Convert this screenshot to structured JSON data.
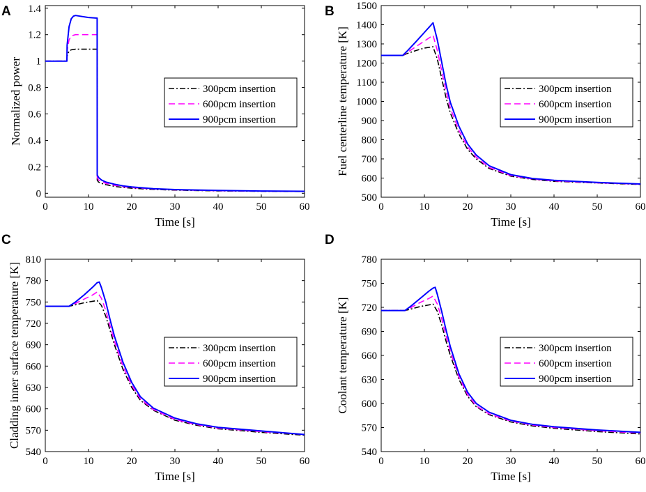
{
  "figure": {
    "description_free": true
  },
  "chart_data": [
    {
      "panel": "A",
      "type": "line",
      "xlabel": "Time [s]",
      "ylabel": "Normalized power",
      "xlim": [
        0,
        60
      ],
      "ylim": [
        -0.03,
        1.42
      ],
      "xticks": [
        0,
        10,
        20,
        30,
        40,
        50,
        60
      ],
      "yticks": [
        0,
        0.2,
        0.4,
        0.6,
        0.8,
        1,
        1.2,
        1.4
      ],
      "yticklabels": [
        "0",
        "0.2",
        "0.4",
        "0.6",
        "0.8",
        "1",
        "1.2",
        "1.4"
      ],
      "legend_position": "center-right",
      "series": [
        {
          "name": "300pcm insertion",
          "color": "#000000",
          "dash": "dashdot",
          "x": [
            0,
            5,
            5.05,
            5.5,
            6,
            7,
            8,
            10,
            12,
            12.02,
            12.3,
            13,
            14,
            16,
            18,
            20,
            25,
            30,
            40,
            50,
            60
          ],
          "y": [
            1.0,
            1.0,
            1.04,
            1.075,
            1.085,
            1.09,
            1.09,
            1.09,
            1.09,
            0.1,
            0.085,
            0.075,
            0.065,
            0.052,
            0.044,
            0.038,
            0.029,
            0.024,
            0.018,
            0.015,
            0.013
          ]
        },
        {
          "name": "600pcm insertion",
          "color": "#FF00FF",
          "dash": "dashed",
          "x": [
            0,
            5,
            5.05,
            5.5,
            6,
            7,
            8,
            10,
            12,
            12.02,
            12.3,
            13,
            14,
            16,
            18,
            20,
            25,
            30,
            40,
            50,
            60
          ],
          "y": [
            1.0,
            1.0,
            1.08,
            1.16,
            1.19,
            1.2,
            1.2,
            1.2,
            1.2,
            0.12,
            0.1,
            0.088,
            0.075,
            0.06,
            0.05,
            0.043,
            0.032,
            0.026,
            0.019,
            0.016,
            0.014
          ]
        },
        {
          "name": "900pcm insertion",
          "color": "#0000FF",
          "dash": "solid",
          "x": [
            0,
            5,
            5.05,
            5.5,
            6,
            6.5,
            7,
            8,
            10,
            12,
            12.02,
            12.3,
            13,
            14,
            16,
            18,
            20,
            25,
            30,
            40,
            50,
            60
          ],
          "y": [
            1.0,
            1.0,
            1.12,
            1.26,
            1.32,
            1.34,
            1.345,
            1.34,
            1.33,
            1.325,
            0.14,
            0.12,
            0.1,
            0.085,
            0.068,
            0.056,
            0.048,
            0.035,
            0.028,
            0.021,
            0.017,
            0.015
          ]
        }
      ]
    },
    {
      "panel": "B",
      "type": "line",
      "xlabel": "Time [s]",
      "ylabel": "Fuel centerline temperature [K]",
      "xlim": [
        0,
        60
      ],
      "ylim": [
        500,
        1500
      ],
      "xticks": [
        0,
        10,
        20,
        30,
        40,
        50,
        60
      ],
      "yticks": [
        500,
        600,
        700,
        800,
        900,
        1000,
        1100,
        1200,
        1300,
        1400,
        1500
      ],
      "yticklabels": [
        "500",
        "600",
        "700",
        "800",
        "900",
        "1000",
        "1100",
        "1200",
        "1300",
        "1400",
        "1500"
      ],
      "legend_position": "center-right",
      "series": [
        {
          "name": "300pcm insertion",
          "color": "#000000",
          "dash": "dashdot",
          "x": [
            0,
            5,
            6,
            8,
            10,
            12,
            13,
            14,
            15,
            16,
            18,
            20,
            22,
            25,
            30,
            35,
            40,
            50,
            60
          ],
          "y": [
            1240,
            1240,
            1250,
            1265,
            1278,
            1285,
            1220,
            1120,
            1020,
            940,
            830,
            750,
            700,
            650,
            610,
            593,
            583,
            574,
            567
          ]
        },
        {
          "name": "600pcm insertion",
          "color": "#FF00FF",
          "dash": "dashed",
          "x": [
            0,
            5,
            6,
            8,
            10,
            12,
            13,
            14,
            15,
            16,
            18,
            20,
            22,
            25,
            30,
            35,
            40,
            50,
            60
          ],
          "y": [
            1240,
            1240,
            1255,
            1285,
            1315,
            1345,
            1265,
            1160,
            1055,
            965,
            848,
            762,
            708,
            655,
            613,
            595,
            585,
            575,
            568
          ]
        },
        {
          "name": "900pcm insertion",
          "color": "#0000FF",
          "dash": "solid",
          "x": [
            0,
            5,
            6,
            8,
            10,
            12,
            13,
            14,
            15,
            16,
            18,
            20,
            22,
            25,
            30,
            35,
            40,
            50,
            60
          ],
          "y": [
            1240,
            1240,
            1262,
            1310,
            1360,
            1410,
            1320,
            1205,
            1090,
            995,
            870,
            778,
            720,
            664,
            618,
            598,
            588,
            577,
            569
          ]
        }
      ]
    },
    {
      "panel": "C",
      "type": "line",
      "xlabel": "Time [s]",
      "ylabel": "Cladding inner surface temperature [K]",
      "xlim": [
        0,
        60
      ],
      "ylim": [
        540,
        810
      ],
      "xticks": [
        0,
        10,
        20,
        30,
        40,
        50,
        60
      ],
      "yticks": [
        540,
        570,
        600,
        630,
        660,
        690,
        720,
        750,
        780,
        810
      ],
      "yticklabels": [
        "540",
        "570",
        "600",
        "630",
        "660",
        "690",
        "720",
        "750",
        "780",
        "810"
      ],
      "legend_position": "center-right",
      "series": [
        {
          "name": "300pcm insertion",
          "color": "#000000",
          "dash": "dashdot",
          "x": [
            0,
            5.5,
            7,
            9,
            11,
            12,
            13,
            14,
            15,
            16,
            18,
            20,
            22,
            25,
            30,
            35,
            40,
            50,
            60
          ],
          "y": [
            744,
            744,
            746,
            749,
            751,
            752,
            745,
            730,
            710,
            690,
            655,
            630,
            612,
            598,
            584,
            577,
            572,
            567,
            563
          ]
        },
        {
          "name": "600pcm insertion",
          "color": "#FF00FF",
          "dash": "dashed",
          "x": [
            0,
            5.5,
            7,
            9,
            11,
            12,
            13,
            14,
            15,
            16,
            18,
            20,
            22,
            25,
            30,
            35,
            40,
            50,
            60
          ],
          "y": [
            744,
            744,
            748,
            754,
            760,
            764,
            755,
            738,
            716,
            695,
            659,
            633,
            614,
            599,
            585,
            578,
            573,
            568,
            564
          ]
        },
        {
          "name": "900pcm insertion",
          "color": "#0000FF",
          "dash": "solid",
          "x": [
            0,
            5.5,
            7,
            9,
            11,
            12,
            12.5,
            13,
            14,
            15,
            16,
            18,
            20,
            22,
            25,
            30,
            35,
            40,
            50,
            60
          ],
          "y": [
            744,
            744,
            750,
            760,
            771,
            777,
            778,
            770,
            750,
            725,
            702,
            665,
            637,
            617,
            601,
            587,
            579,
            574,
            569,
            564
          ]
        }
      ]
    },
    {
      "panel": "D",
      "type": "line",
      "xlabel": "Time [s]",
      "ylabel": "Coolant temperature [K]",
      "xlim": [
        0,
        60
      ],
      "ylim": [
        540,
        780
      ],
      "xticks": [
        0,
        10,
        20,
        30,
        40,
        50,
        60
      ],
      "yticks": [
        540,
        570,
        600,
        630,
        660,
        690,
        720,
        750,
        780
      ],
      "yticklabels": [
        "540",
        "570",
        "600",
        "630",
        "660",
        "690",
        "720",
        "750",
        "780"
      ],
      "legend_position": "center-right",
      "series": [
        {
          "name": "300pcm insertion",
          "color": "#000000",
          "dash": "dashdot",
          "x": [
            0,
            5.5,
            7,
            9,
            11,
            12,
            13,
            14,
            15,
            16,
            18,
            20,
            22,
            25,
            30,
            35,
            40,
            50,
            60
          ],
          "y": [
            716,
            716,
            718,
            721,
            723,
            724,
            715,
            698,
            678,
            660,
            630,
            609,
            596,
            586,
            577,
            572,
            569,
            565,
            562
          ]
        },
        {
          "name": "600pcm insertion",
          "color": "#FF00FF",
          "dash": "dashed",
          "x": [
            0,
            5.5,
            7,
            9,
            11,
            12,
            13,
            14,
            15,
            16,
            18,
            20,
            22,
            25,
            30,
            35,
            40,
            50,
            60
          ],
          "y": [
            716,
            716,
            720,
            726,
            731,
            734,
            724,
            706,
            684,
            665,
            633,
            611,
            597,
            587,
            578,
            573,
            570,
            566,
            563
          ]
        },
        {
          "name": "900pcm insertion",
          "color": "#0000FF",
          "dash": "solid",
          "x": [
            0,
            5.5,
            7,
            9,
            11,
            12,
            12.5,
            13,
            14,
            15,
            16,
            18,
            20,
            22,
            25,
            30,
            35,
            40,
            50,
            60
          ],
          "y": [
            716,
            716,
            722,
            731,
            740,
            744,
            745,
            736,
            715,
            692,
            671,
            637,
            614,
            600,
            589,
            579,
            574,
            571,
            567,
            564
          ]
        }
      ]
    }
  ]
}
